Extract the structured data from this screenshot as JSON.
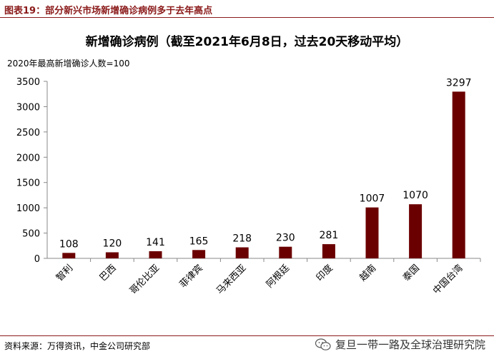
{
  "figure": {
    "label": "图表19：部分新兴市场新增确诊病例多于去年高点"
  },
  "chart_data": {
    "type": "bar",
    "title": "新增确诊病例（截至2021年6月8日，过去20天移动平均）",
    "subtitle": "2020年最高新增确诊人数=100",
    "xlabel": "",
    "ylabel": "",
    "categories": [
      "智利",
      "巴西",
      "哥伦比亚",
      "菲律宾",
      "马来西亚",
      "阿根廷",
      "印度",
      "越南",
      "泰国",
      "中国台湾"
    ],
    "values": [
      108,
      120,
      141,
      165,
      218,
      230,
      281,
      1007,
      1070,
      3297
    ],
    "ylim": [
      0,
      3500
    ],
    "yticks": [
      0,
      500,
      1000,
      1500,
      2000,
      2500,
      3000,
      3500
    ],
    "grid": false,
    "bar_color": "#6b0000"
  },
  "footer": {
    "source": "资料来源：万得资讯，中金公司研究部",
    "watermark": "复旦一带一路及全球治理研究院",
    "watermark_icon": "wechat-icon"
  },
  "colors": {
    "accent": "#8b1a1a"
  }
}
